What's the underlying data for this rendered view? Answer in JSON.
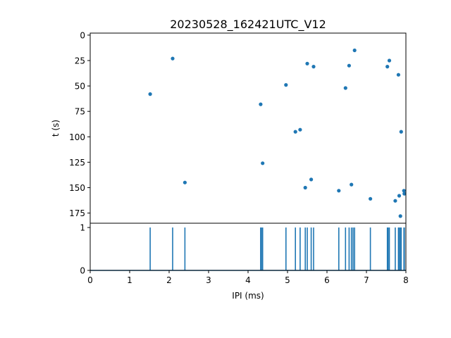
{
  "chart_data": [
    {
      "type": "scatter",
      "title": "20230528_162421UTC_V12",
      "xlabel": "",
      "ylabel": "t (s)",
      "xlim": [
        0,
        8
      ],
      "ylim": [
        185,
        -2
      ],
      "y_inverted": true,
      "yticks": [
        "0",
        "25",
        "50",
        "75",
        "100",
        "125",
        "150",
        "175"
      ],
      "color": "#1f77b4",
      "points": [
        {
          "x": 1.52,
          "y": 58
        },
        {
          "x": 2.09,
          "y": 23
        },
        {
          "x": 2.4,
          "y": 145
        },
        {
          "x": 4.32,
          "y": 68
        },
        {
          "x": 4.37,
          "y": 126
        },
        {
          "x": 4.96,
          "y": 49
        },
        {
          "x": 5.2,
          "y": 95
        },
        {
          "x": 5.32,
          "y": 93
        },
        {
          "x": 5.45,
          "y": 150
        },
        {
          "x": 5.5,
          "y": 28
        },
        {
          "x": 5.6,
          "y": 142
        },
        {
          "x": 5.66,
          "y": 31
        },
        {
          "x": 6.3,
          "y": 153
        },
        {
          "x": 6.47,
          "y": 52
        },
        {
          "x": 6.56,
          "y": 30
        },
        {
          "x": 6.62,
          "y": 147
        },
        {
          "x": 6.7,
          "y": 15
        },
        {
          "x": 7.1,
          "y": 161
        },
        {
          "x": 7.53,
          "y": 31
        },
        {
          "x": 7.58,
          "y": 25
        },
        {
          "x": 7.73,
          "y": 163
        },
        {
          "x": 7.81,
          "y": 39
        },
        {
          "x": 7.83,
          "y": 158
        },
        {
          "x": 7.86,
          "y": 178
        },
        {
          "x": 7.88,
          "y": 95
        },
        {
          "x": 7.95,
          "y": 153
        },
        {
          "x": 7.96,
          "y": 156
        }
      ]
    },
    {
      "type": "line",
      "title": "",
      "xlabel": "IPI (ms)",
      "ylabel": "",
      "xlim": [
        0,
        8
      ],
      "ylim": [
        0,
        1.1
      ],
      "xticks": [
        "0",
        "1",
        "2",
        "3",
        "4",
        "5",
        "6",
        "7",
        "8"
      ],
      "yticks": [
        "0",
        "1"
      ],
      "color": "#1f77b4",
      "baseline": 0,
      "spikes": [
        1.52,
        2.09,
        2.4,
        4.32,
        4.34,
        4.37,
        4.96,
        5.2,
        5.32,
        5.45,
        5.5,
        5.6,
        5.66,
        6.3,
        6.47,
        6.56,
        6.62,
        6.66,
        6.7,
        7.1,
        7.53,
        7.55,
        7.58,
        7.73,
        7.81,
        7.83,
        7.86,
        7.88,
        7.95,
        7.96
      ],
      "spike_value": 1
    }
  ]
}
